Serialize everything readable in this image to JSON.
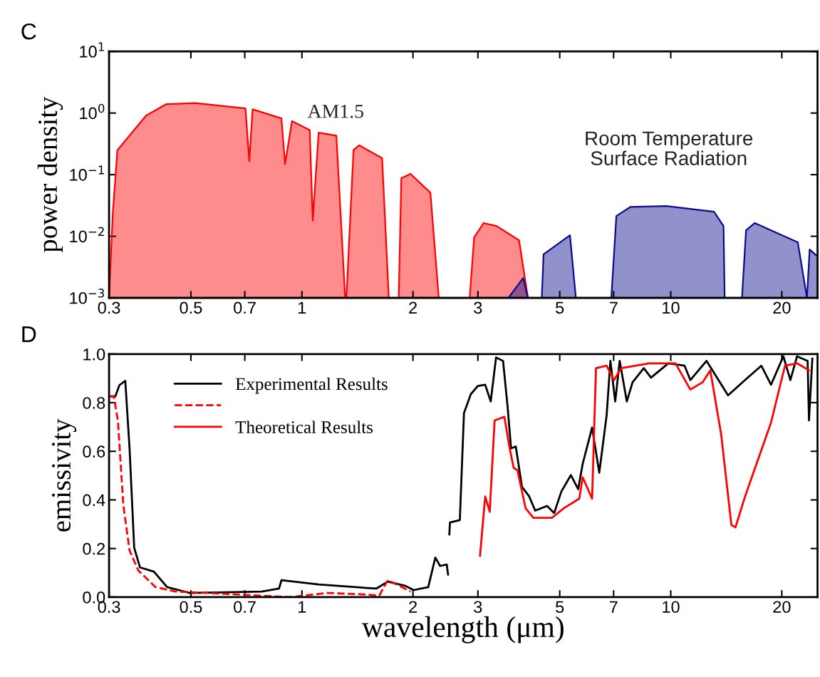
{
  "chart_data": [
    {
      "type": "area",
      "title": "C",
      "ylabel": "power density",
      "log": "xy",
      "xlim": [
        0.3,
        25
      ],
      "ylim": [
        0.001,
        10
      ],
      "xticks": [
        0.3,
        0.5,
        0.7,
        1,
        2,
        3,
        5,
        7,
        10,
        20
      ],
      "yticks": [
        {
          "value": 0.001,
          "label": "10$^{−3}$"
        },
        {
          "value": 0.01,
          "label": "10$^{−2}$"
        },
        {
          "value": 0.1,
          "label": "10$^{−1}$"
        },
        {
          "value": 1,
          "label": "10$^{0}$"
        },
        {
          "value": 10,
          "label": "10$^{1}$"
        }
      ],
      "annotations": [
        "AM1.5",
        "Room Temperature\nSurface Radiation"
      ],
      "series": [
        {
          "color": "#ff0000",
          "x": [
            0.3,
            0.307,
            0.316,
            0.378,
            0.429,
            0.514,
            0.703,
            0.72,
            0.735,
            0.88,
            0.9,
            0.94,
            1.05,
            1.07,
            1.11,
            1.24,
            1.31,
            1.32,
            1.38,
            1.43,
            1.65,
            1.72,
            1.83,
            1.86,
            1.97,
            2.23,
            2.35,
            2.85,
            2.93,
            3.11,
            3.37,
            3.88,
            4.1
          ],
          "values": [
            0.001,
            0.023,
            0.25,
            0.91,
            1.4,
            1.45,
            1.19,
            0.166,
            1.15,
            0.82,
            0.149,
            0.74,
            0.53,
            0.018,
            0.48,
            0.43,
            0.001,
            0.001,
            0.25,
            0.3,
            0.185,
            0.001,
            0.001,
            0.0875,
            0.103,
            0.051,
            0.001,
            0.001,
            0.0096,
            0.0164,
            0.0147,
            0.0086,
            0.001
          ]
        },
        {
          "color": "#0a0a8c",
          "x": [
            3.63,
            3.98,
            4.1,
            4.47,
            4.52,
            5.33,
            5.53,
            6.9,
            7.12,
            7.78,
            9.73,
            13.1,
            13.9,
            14.0,
            15.6,
            16.0,
            16.9,
            22.1,
            23.4,
            23.8,
            25
          ],
          "values": [
            0.001,
            0.0021,
            0.001,
            0.001,
            0.0051,
            0.0104,
            0.001,
            0.001,
            0.0213,
            0.03,
            0.031,
            0.025,
            0.0147,
            0.001,
            0.001,
            0.0125,
            0.0164,
            0.008,
            0.001,
            0.0061,
            0.0047
          ]
        }
      ]
    },
    {
      "type": "line",
      "title": "D",
      "ylabel": "emissivity",
      "xlabel": "wavelength (μm)",
      "log": "x",
      "xlim": [
        0.3,
        25
      ],
      "ylim": [
        0,
        1
      ],
      "xticks": [
        0.3,
        0.5,
        0.7,
        1,
        2,
        3,
        5,
        7,
        10,
        20
      ],
      "yticks": [
        {
          "value": 0,
          "label": "0.0"
        },
        {
          "value": 0.2,
          "label": "0.2"
        },
        {
          "value": 0.4,
          "label": "0.4"
        },
        {
          "value": 0.6,
          "label": "0.6"
        },
        {
          "value": 0.8,
          "label": "0.8"
        },
        {
          "value": 1,
          "label": "1.0"
        }
      ],
      "legend": "top left",
      "series": [
        {
          "name": "Experimental Results",
          "color": "#000000",
          "line_style": "solid",
          "x": [
            0.3,
            0.312,
            0.32,
            0.332,
            0.341,
            0.351,
            0.364,
            0.397,
            0.431,
            0.497,
            0.778,
            0.867,
            0.88,
            1.11,
            1.59,
            1.71,
            1.9,
            2.01,
            2.2,
            2.3,
            2.37,
            2.47,
            2.49,
            2.5,
            2.51,
            2.52,
            2.68,
            2.75,
            2.87,
            3.0,
            3.14,
            3.25,
            3.36,
            3.51,
            3.61,
            3.69,
            3.8,
            3.95,
            4.13,
            4.29,
            4.62,
            4.83,
            5.05,
            5.36,
            5.61,
            5.77,
            6.12,
            6.4,
            6.7,
            6.86,
            7.07,
            7.27,
            7.6,
            7.88,
            8.45,
            8.84,
            9.85,
            10.9,
            11.3,
            12.5,
            14.1,
            14.3,
            15.9,
            17.6,
            18.7,
            20.2,
            21.1,
            22.0,
            23.5,
            23.7,
            24.2
          ],
          "values": [
            0.826,
            0.826,
            0.872,
            0.89,
            0.61,
            0.203,
            0.122,
            0.105,
            0.041,
            0.017,
            0.023,
            0.035,
            0.07,
            0.052,
            0.035,
            0.064,
            0.047,
            0.029,
            0.041,
            0.163,
            0.128,
            0.134,
            0.093,
            null,
            0.258,
            0.307,
            0.317,
            0.757,
            0.835,
            0.869,
            0.874,
            0.805,
            0.986,
            0.972,
            0.786,
            0.612,
            0.62,
            0.454,
            0.415,
            0.356,
            0.375,
            0.346,
            0.434,
            0.502,
            0.444,
            0.548,
            0.698,
            0.512,
            0.747,
            0.972,
            0.805,
            0.972,
            0.805,
            0.884,
            0.942,
            0.903,
            0.962,
            0.952,
            0.893,
            0.972,
            0.845,
            0.83,
            0.893,
            0.952,
            0.874,
            0.991,
            0.893,
            0.991,
            0.972,
            0.727,
            0.981
          ]
        },
        {
          "color": "#ff0000",
          "line_style": "dashed",
          "x": [
            0.3,
            0.309,
            0.317,
            0.328,
            0.341,
            0.36,
            0.401,
            0.455,
            0.651,
            0.93,
            1.17,
            1.44,
            1.62,
            1.71,
            1.97
          ],
          "values": [
            0.826,
            0.826,
            0.727,
            0.378,
            0.192,
            0.11,
            0.041,
            0.023,
            0.012,
            0.0,
            0.017,
            0.012,
            0.006,
            0.07,
            0.023
          ]
        },
        {
          "name": "Theoretical Results",
          "color": "#ff0000",
          "line_style": "solid",
          "x": [
            3.04,
            3.14,
            3.23,
            3.33,
            3.54,
            3.65,
            3.75,
            3.84,
            4.04,
            4.24,
            4.76,
            5.13,
            5.65,
            5.77,
            6.12,
            6.27,
            6.7,
            7.02,
            7.33,
            8.75,
            10.3,
            11.3,
            12.2,
            12.8,
            13.7,
            14.6,
            14.98,
            15.9,
            18.7,
            20.4,
            22.0,
            23.7
          ],
          "values": [
            0.17,
            0.414,
            0.351,
            0.727,
            0.742,
            0.62,
            0.532,
            0.522,
            0.366,
            0.326,
            0.326,
            0.366,
            0.405,
            0.493,
            0.405,
            0.942,
            0.952,
            0.893,
            0.942,
            0.962,
            0.962,
            0.854,
            0.884,
            0.933,
            0.669,
            0.297,
            0.287,
            0.414,
            0.718,
            0.952,
            0.962,
            0.933
          ]
        }
      ]
    }
  ]
}
